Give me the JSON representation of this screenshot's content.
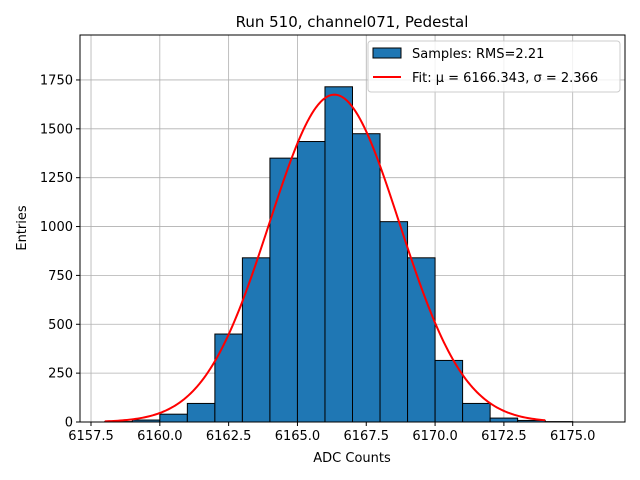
{
  "chart_data": {
    "type": "bar",
    "title": "Run 510, channel071, Pedestal",
    "xlabel": "ADC Counts",
    "ylabel": "Entries",
    "xlim": [
      6157.1,
      6176.9
    ],
    "ylim": [
      0,
      1980
    ],
    "grid": true,
    "legend_position": "top-right",
    "xticks": [
      6157.5,
      6160.0,
      6162.5,
      6165.0,
      6167.5,
      6170.0,
      6172.5,
      6175.0
    ],
    "xtick_labels": [
      "6157.5",
      "6160.0",
      "6162.5",
      "6165.0",
      "6167.5",
      "6170.0",
      "6172.5",
      "6175.0"
    ],
    "yticks": [
      0,
      250,
      500,
      750,
      1000,
      1250,
      1500,
      1750
    ],
    "ytick_labels": [
      "0",
      "250",
      "500",
      "750",
      "1000",
      "1250",
      "1500",
      "1750"
    ],
    "histogram": {
      "name": "Samples: RMS=2.21",
      "bin_width": 1,
      "bin_starts": [
        6158,
        6159,
        6160,
        6161,
        6162,
        6163,
        6164,
        6165,
        6166,
        6167,
        6168,
        6169,
        6170,
        6171,
        6172,
        6173,
        6174
      ],
      "values": [
        2,
        10,
        40,
        95,
        450,
        840,
        1350,
        1435,
        1715,
        1475,
        1025,
        840,
        315,
        95,
        20,
        8,
        2
      ],
      "color": "#1f77b4",
      "edge_color": "#000000"
    },
    "fit": {
      "name": "Fit: μ = 6166.343, σ = 2.366",
      "mu": 6166.343,
      "sigma": 2.366,
      "amplitude": 1675,
      "x_range": [
        6158,
        6174
      ],
      "color": "#ff0000"
    }
  }
}
